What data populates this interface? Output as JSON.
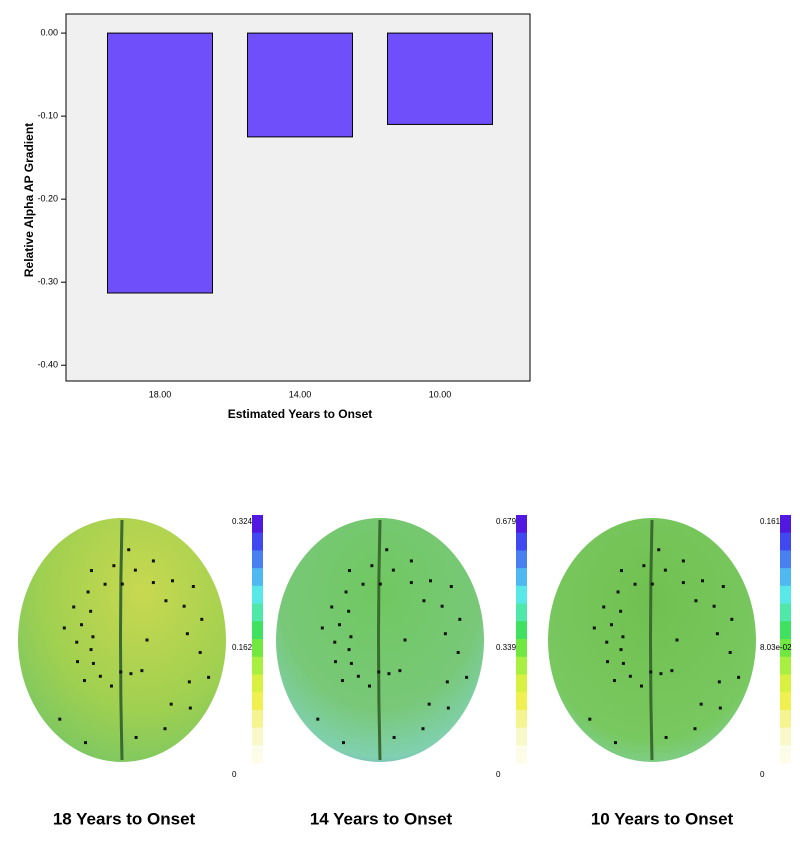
{
  "chart_data": {
    "type": "bar",
    "x_label": "Estimated Years to Onset",
    "y_label": "Relative Alpha AP Gradient",
    "categories": [
      "18.00",
      "14.00",
      "10.00"
    ],
    "values": [
      -0.313,
      -0.125,
      -0.11
    ],
    "color": "#6e4ffa",
    "ylim": [
      -0.419,
      0.023
    ],
    "yticks": [
      {
        "value": 0,
        "label": "0.00"
      },
      {
        "value": -0.1,
        "label": "-0.10"
      },
      {
        "value": -0.2,
        "label": "-0.20"
      },
      {
        "value": -0.3,
        "label": "-0.30"
      },
      {
        "value": -0.4,
        "label": "-0.40"
      }
    ]
  },
  "panels": [
    {
      "caption": "18 Years to Onset",
      "colorbar_labels": [
        "0.324",
        "0.162",
        "0"
      ]
    },
    {
      "caption": "14 Years to Onset",
      "colorbar_labels": [
        "0.679",
        "0.339",
        "0"
      ]
    },
    {
      "caption": "10 Years to Onset",
      "colorbar_labels": [
        "0.161",
        "8.03e-02",
        "0"
      ]
    }
  ]
}
